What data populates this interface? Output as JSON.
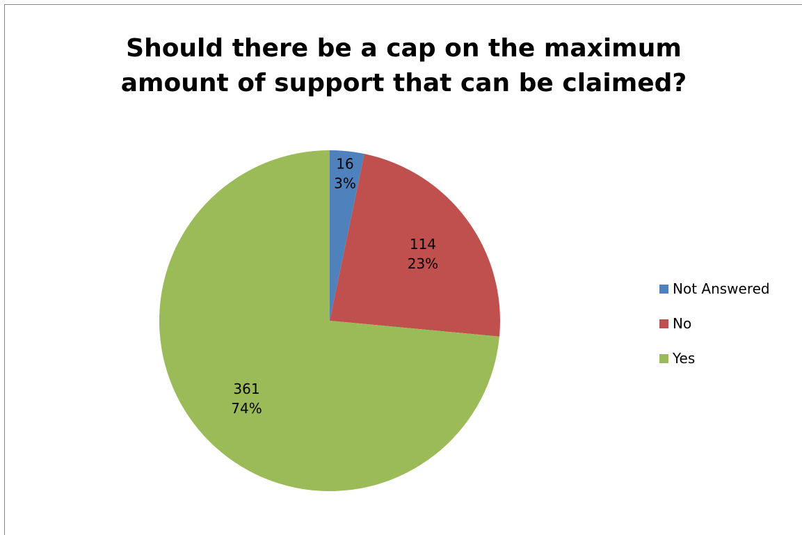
{
  "chart_data": {
    "type": "pie",
    "title_lines": [
      "Should there be a cap on the maximum",
      "amount of support that can be claimed?"
    ],
    "categories": [
      "Not Answered",
      "No",
      "Yes"
    ],
    "values": [
      16,
      114,
      361
    ],
    "percent_labels": [
      "3%",
      "23%",
      "74%"
    ],
    "colors": [
      "#4f81bd",
      "#c0504d",
      "#9bbb59"
    ],
    "legend_position": "right",
    "start_angle": "12 o'clock",
    "direction": "clockwise"
  }
}
